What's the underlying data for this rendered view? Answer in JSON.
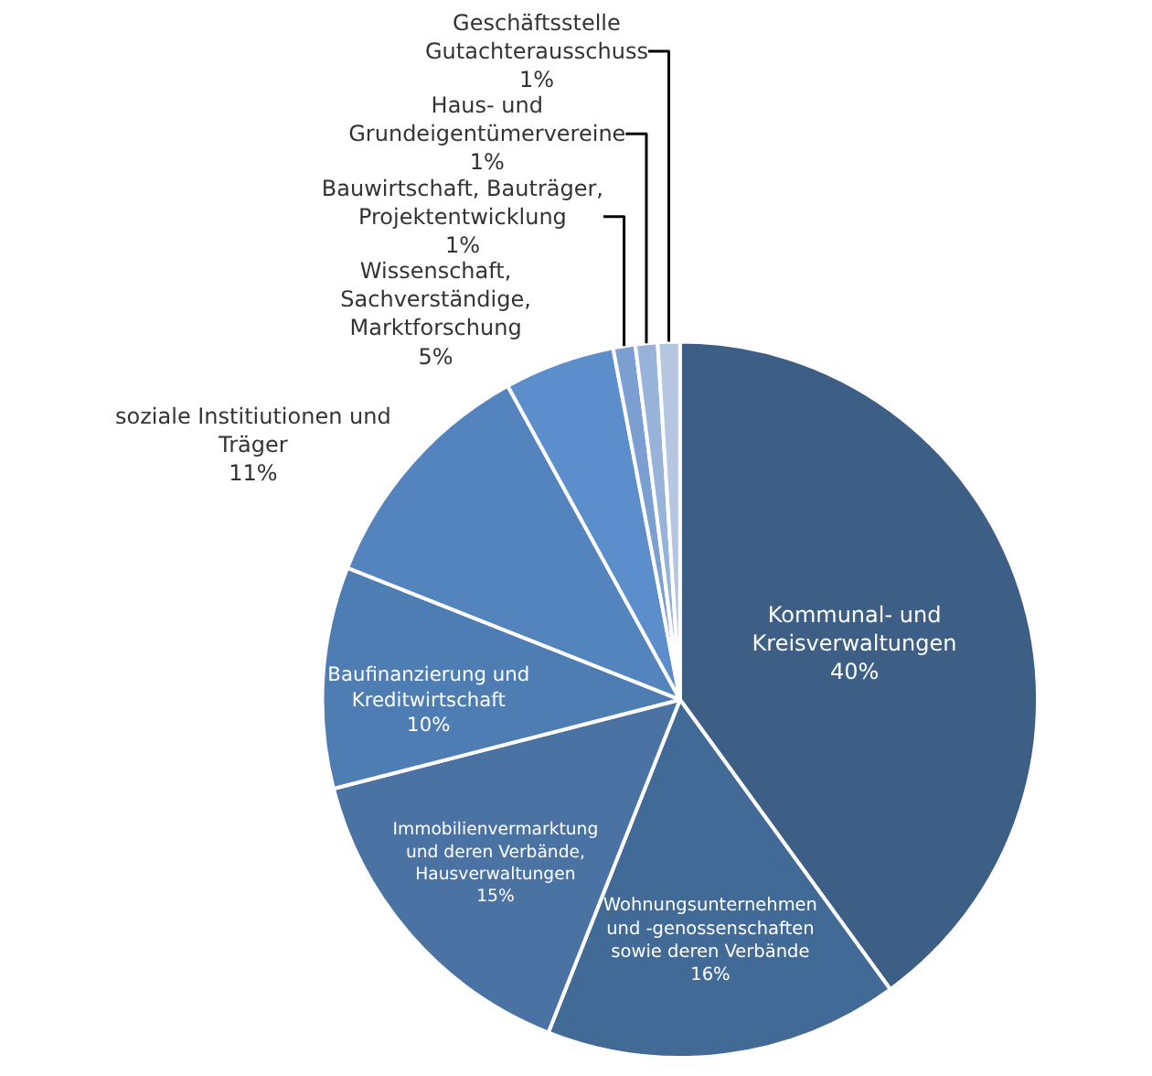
{
  "chart_data": {
    "type": "pie",
    "categories": [
      "Kommunal- und\nKreisverwaltungen",
      "Wohnungsunternehmen\nund -genossenschaften\nsowie deren Verbände",
      "Immobilienvermarktung\nund deren Verbände,\nHausverwaltungen",
      "Baufinanzierung und\nKreditwirtschaft",
      "soziale Institiutionen und\nTräger",
      "Wissenschaft,\nSachverständige,\nMarktforschung",
      "Bauwirtschaft, Bauträger,\nProjektentwicklung",
      "Haus- und\nGrundeigentümervereine",
      "Geschäftsstelle\nGutachterausschuss"
    ],
    "values": [
      40,
      16,
      15,
      10,
      11,
      5,
      1,
      1,
      1
    ],
    "value_labels": [
      "40%",
      "16%",
      "15%",
      "10%",
      "11%",
      "5%",
      "1%",
      "1%",
      "1%"
    ],
    "colors": [
      "#3d5f86",
      "#426a96",
      "#4a73a4",
      "#4e7db3",
      "#5484bd",
      "#5b8ecb",
      "#7b9fd0",
      "#98b3d9",
      "#b4c6e0"
    ],
    "legend": false
  }
}
